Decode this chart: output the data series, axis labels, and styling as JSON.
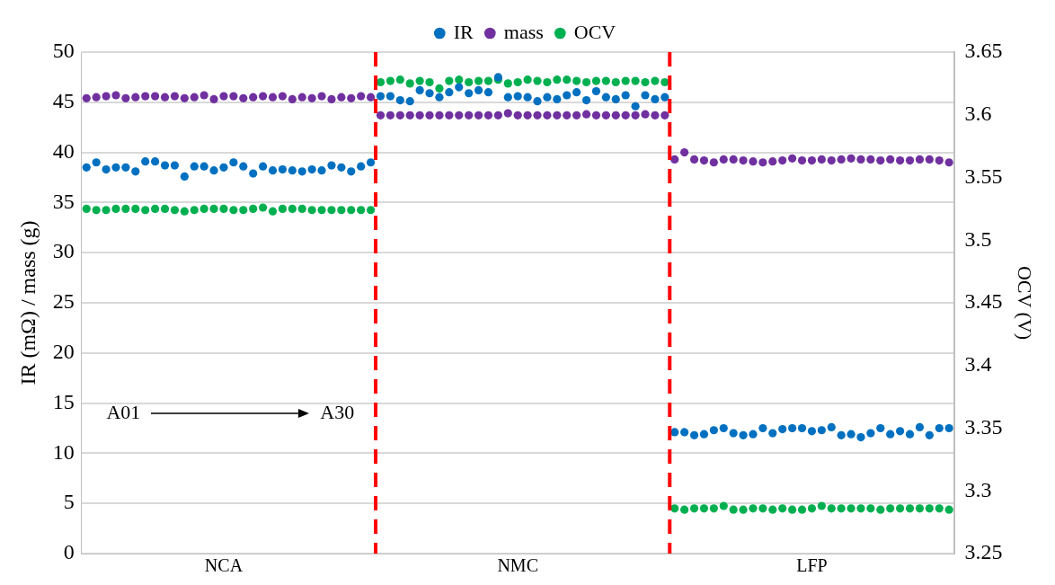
{
  "chart_data": {
    "type": "scatter",
    "legend": "top",
    "grid": "y",
    "marker": "circle",
    "ylabel": "IR (mΩ) / mass (g)",
    "y2label": "OCV (V)",
    "categories": [
      null,
      null,
      null,
      null,
      null,
      null,
      null,
      null,
      null,
      null,
      null,
      null,
      null,
      null,
      "NCA",
      null,
      null,
      null,
      null,
      null,
      null,
      null,
      null,
      null,
      null,
      null,
      null,
      null,
      null,
      null,
      null,
      null,
      null,
      null,
      null,
      null,
      null,
      null,
      null,
      null,
      null,
      null,
      null,
      null,
      "NMC",
      null,
      null,
      null,
      null,
      null,
      null,
      null,
      null,
      null,
      null,
      null,
      null,
      null,
      null,
      null,
      null,
      null,
      null,
      null,
      null,
      null,
      null,
      null,
      null,
      null,
      null,
      null,
      null,
      null,
      "LFP",
      null,
      null,
      null,
      null,
      null,
      null,
      null,
      null,
      null,
      null,
      null,
      null,
      null,
      null
    ],
    "ylim": [
      0,
      50
    ],
    "yticks": [
      0,
      5,
      10,
      15,
      20,
      25,
      30,
      35,
      40,
      45,
      50
    ],
    "y2lim": [
      3.25,
      3.65
    ],
    "y2ticks": [
      3.25,
      3.3,
      3.35,
      3.4,
      3.45,
      3.5,
      3.55,
      3.6,
      3.65
    ],
    "series": [
      {
        "name": "IR",
        "color": "#0070c0",
        "values": [
          38.5,
          39.0,
          38.3,
          38.5,
          38.5,
          38.1,
          39.1,
          39.1,
          38.7,
          38.7,
          37.6,
          38.6,
          38.6,
          38.2,
          38.5,
          39.0,
          38.6,
          37.9,
          38.6,
          38.2,
          38.3,
          38.2,
          38.1,
          38.3,
          38.2,
          38.7,
          38.5,
          38.1,
          38.6,
          39.0,
          45.6,
          45.6,
          45.2,
          45.1,
          46.2,
          45.9,
          45.5,
          46.0,
          46.5,
          45.9,
          46.2,
          46.0,
          47.5,
          45.5,
          45.6,
          45.5,
          45.1,
          45.5,
          45.3,
          45.7,
          46.0,
          45.2,
          46.1,
          45.5,
          45.3,
          45.7,
          44.6,
          45.7,
          45.3,
          45.5,
          12.1,
          12.1,
          11.8,
          11.9,
          12.3,
          12.5,
          12.0,
          11.8,
          11.9,
          12.5,
          12.0,
          12.4,
          12.5,
          12.5,
          12.2,
          12.3,
          12.6,
          11.8,
          11.9,
          11.6,
          12.0,
          12.5,
          11.9,
          12.2,
          11.9,
          12.6,
          11.8,
          12.5,
          12.5
        ]
      },
      {
        "name": "mass",
        "color": "#7030a0",
        "values": [
          45.4,
          45.5,
          45.6,
          45.7,
          45.4,
          45.5,
          45.6,
          45.6,
          45.5,
          45.6,
          45.4,
          45.5,
          45.7,
          45.3,
          45.6,
          45.6,
          45.4,
          45.5,
          45.6,
          45.5,
          45.6,
          45.3,
          45.5,
          45.4,
          45.6,
          45.3,
          45.5,
          45.4,
          45.6,
          45.5,
          43.7,
          43.7,
          43.7,
          43.7,
          43.7,
          43.7,
          43.7,
          43.7,
          43.7,
          43.7,
          43.7,
          43.7,
          43.7,
          43.9,
          43.7,
          43.7,
          43.7,
          43.7,
          43.7,
          43.7,
          43.7,
          43.8,
          43.7,
          43.7,
          43.7,
          43.7,
          43.7,
          43.8,
          43.7,
          43.7,
          39.3,
          40.0,
          39.3,
          39.2,
          39.0,
          39.3,
          39.3,
          39.2,
          39.1,
          39.0,
          39.1,
          39.2,
          39.4,
          39.2,
          39.2,
          39.3,
          39.2,
          39.3,
          39.4,
          39.3,
          39.3,
          39.2,
          39.3,
          39.2,
          39.2,
          39.3,
          39.3,
          39.2,
          39.0
        ]
      },
      {
        "name": "OCV",
        "color": "#00b050",
        "axis": "y2",
        "values": [
          3.525,
          3.524,
          3.524,
          3.525,
          3.525,
          3.525,
          3.524,
          3.525,
          3.525,
          3.524,
          3.523,
          3.524,
          3.525,
          3.525,
          3.525,
          3.524,
          3.524,
          3.525,
          3.526,
          3.523,
          3.525,
          3.525,
          3.525,
          3.524,
          3.524,
          3.524,
          3.524,
          3.524,
          3.524,
          3.524,
          3.626,
          3.627,
          3.628,
          3.625,
          3.627,
          3.626,
          3.621,
          3.627,
          3.628,
          3.626,
          3.627,
          3.627,
          3.628,
          3.625,
          3.626,
          3.628,
          3.627,
          3.626,
          3.628,
          3.628,
          3.627,
          3.626,
          3.627,
          3.627,
          3.626,
          3.627,
          3.627,
          3.626,
          3.627,
          3.626,
          3.286,
          3.285,
          3.286,
          3.286,
          3.286,
          3.288,
          3.285,
          3.285,
          3.286,
          3.286,
          3.285,
          3.286,
          3.285,
          3.285,
          3.286,
          3.288,
          3.286,
          3.286,
          3.286,
          3.286,
          3.286,
          3.285,
          3.286,
          3.286,
          3.286,
          3.286,
          3.286,
          3.286,
          3.285
        ]
      }
    ],
    "annotations": [
      "A01",
      "A30"
    ]
  }
}
